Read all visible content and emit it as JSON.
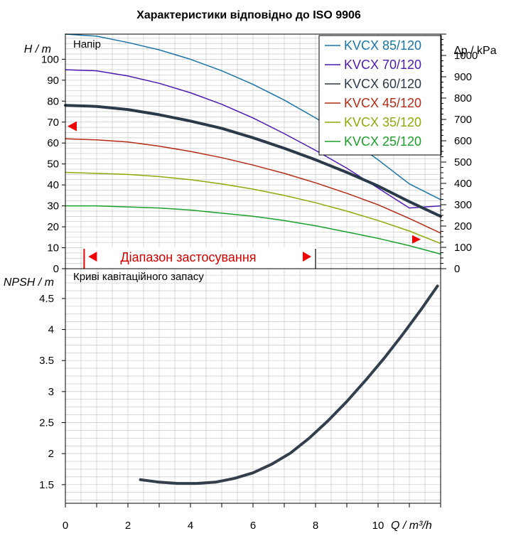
{
  "title": "Характеристики відповідно до ISO 9906",
  "chart_data": [
    {
      "type": "line",
      "panel_label": "Напір",
      "ylabel_left": "H / m",
      "ylabel_right": "∆p / kPa",
      "xlim": [
        0,
        12
      ],
      "ylim": [
        0,
        112
      ],
      "yticks": [
        0,
        10,
        20,
        30,
        40,
        50,
        60,
        70,
        80,
        90,
        100
      ],
      "ylim_right": [
        0,
        1100
      ],
      "yticks_right": [
        0,
        100,
        200,
        300,
        400,
        500,
        600,
        700,
        800,
        900,
        1000
      ],
      "grid": true,
      "legend_position": "top-right",
      "series": [
        {
          "name": "KVCX 85/120",
          "color": "#1a74a8",
          "width": 1.5,
          "x": [
            0,
            1,
            2,
            3,
            4,
            5,
            6,
            7,
            8,
            9,
            10,
            11,
            12
          ],
          "values": [
            112,
            111,
            108,
            104.5,
            100,
            94.5,
            88,
            80.5,
            72,
            62.5,
            52,
            40.5,
            33
          ]
        },
        {
          "name": "KVCX 70/120",
          "color": "#4b1ab4",
          "width": 1.5,
          "x": [
            0,
            1,
            2,
            3,
            4,
            5,
            6,
            7,
            8,
            9,
            10,
            11,
            12
          ],
          "values": [
            95,
            94.5,
            92,
            88.5,
            84,
            78.5,
            72,
            64.5,
            56.5,
            48,
            38.5,
            29,
            30
          ]
        },
        {
          "name": "KVCX 60/120",
          "color": "#2b3a48",
          "width": 4,
          "x": [
            0,
            1,
            2,
            3,
            4,
            5,
            6,
            7,
            8,
            9,
            10,
            11,
            12
          ],
          "values": [
            78,
            77.5,
            76,
            73.5,
            70.5,
            67,
            62.5,
            57.5,
            52,
            46,
            39.5,
            32,
            25
          ]
        },
        {
          "name": "KVCX 45/120",
          "color": "#b42a14",
          "width": 1.5,
          "x": [
            0,
            1,
            2,
            3,
            4,
            5,
            6,
            7,
            8,
            9,
            10,
            11,
            12
          ],
          "values": [
            62,
            61.5,
            60.5,
            58.5,
            56,
            53,
            49.5,
            45.5,
            41,
            36,
            30.5,
            24,
            17
          ]
        },
        {
          "name": "KVCX 35/120",
          "color": "#8faa0a",
          "width": 1.5,
          "x": [
            0,
            1,
            2,
            3,
            4,
            5,
            6,
            7,
            8,
            9,
            10,
            11,
            12
          ],
          "values": [
            46,
            45.5,
            45,
            44,
            42.5,
            40.5,
            38,
            35,
            31.5,
            27.5,
            23,
            18,
            12
          ]
        },
        {
          "name": "KVCX 25/120",
          "color": "#1aa028",
          "width": 1.5,
          "x": [
            0,
            1,
            2,
            3,
            4,
            5,
            6,
            7,
            8,
            9,
            10,
            11,
            12
          ],
          "values": [
            30,
            30,
            29.5,
            29,
            28,
            26.5,
            25,
            23,
            20.5,
            17.5,
            14.5,
            11,
            7
          ]
        }
      ],
      "duty_point": 68,
      "application_range": {
        "label": "Діапазон застосування",
        "x": [
          0.6,
          8
        ]
      }
    },
    {
      "type": "line",
      "panel_label": "Криві кавітаційного запасу",
      "ylabel": "NPSH / m",
      "xlabel": "Q / m³/h",
      "xlim": [
        0,
        12
      ],
      "xticks": [
        0,
        2,
        4,
        6,
        8,
        10
      ],
      "ylim": [
        1.2,
        4.98
      ],
      "yticks": [
        1.5,
        2,
        2.5,
        3,
        3.5,
        4,
        4.5
      ],
      "grid": true,
      "series": [
        {
          "color": "#333f4b",
          "x": [
            2.4,
            3,
            3.6,
            4.2,
            4.8,
            5.4,
            6,
            6.6,
            7.2,
            7.8,
            8.4,
            9,
            9.6,
            10.2,
            10.8,
            11.4,
            11.9
          ],
          "values": [
            1.58,
            1.54,
            1.52,
            1.52,
            1.54,
            1.6,
            1.69,
            1.83,
            2.01,
            2.25,
            2.53,
            2.84,
            3.18,
            3.54,
            3.93,
            4.34,
            4.7
          ]
        }
      ]
    }
  ]
}
